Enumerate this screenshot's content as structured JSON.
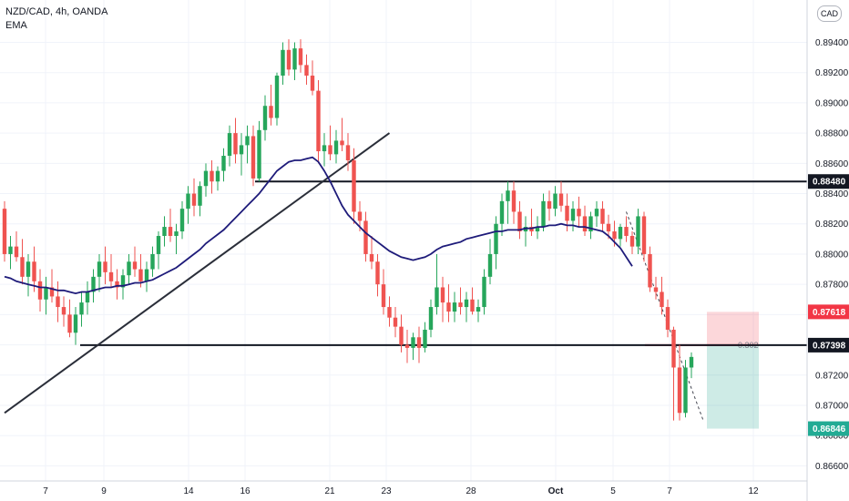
{
  "header": {
    "symbol": "NZD/CAD, 4h, OANDA",
    "indicator": "EMA",
    "currency_button": "CAD"
  },
  "chart_data": {
    "type": "candlestick",
    "ylim": [
      0.865,
      0.8968
    ],
    "y_ticks": [
      "0.86600",
      "0.86800",
      "0.87000",
      "0.87200",
      "0.87400",
      "0.87600",
      "0.87800",
      "0.88000",
      "0.88200",
      "0.88400",
      "0.88600",
      "0.88800",
      "0.89000",
      "0.89200",
      "0.89400"
    ],
    "x_labels": [
      "7",
      "9",
      "14",
      "16",
      "21",
      "23",
      "28",
      "Oct",
      "5",
      "7",
      "12"
    ],
    "price_labels": [
      {
        "value": 0.8848,
        "text": "0.88480",
        "color": "#131722"
      },
      {
        "value": 0.87618,
        "text": "0.87618",
        "color": "#f23645"
      },
      {
        "value": 0.87398,
        "text": "0.87398",
        "color": "#131722"
      },
      {
        "value": 0.86846,
        "text": "0.86846",
        "color": "#22ab94"
      }
    ],
    "horizontal_levels": [
      0.8848,
      0.87398
    ],
    "position": {
      "entry": 0.87398,
      "stop": 0.87618,
      "target": 0.86846,
      "label": "0.302"
    },
    "candles": [
      [
        0.883,
        0.8835,
        0.8795,
        0.88
      ],
      [
        0.88,
        0.8812,
        0.879,
        0.8805
      ],
      [
        0.8805,
        0.8815,
        0.8795,
        0.8798
      ],
      [
        0.8798,
        0.881,
        0.878,
        0.8785
      ],
      [
        0.8785,
        0.88,
        0.8772,
        0.8795
      ],
      [
        0.8795,
        0.8805,
        0.8775,
        0.8782
      ],
      [
        0.8782,
        0.879,
        0.8762,
        0.877
      ],
      [
        0.877,
        0.8785,
        0.876,
        0.8778
      ],
      [
        0.8778,
        0.879,
        0.8768,
        0.8772
      ],
      [
        0.8772,
        0.8782,
        0.8755,
        0.8765
      ],
      [
        0.8765,
        0.8772,
        0.8752,
        0.876
      ],
      [
        0.876,
        0.877,
        0.8745,
        0.8748
      ],
      [
        0.8748,
        0.8765,
        0.874,
        0.876
      ],
      [
        0.876,
        0.8775,
        0.8752,
        0.8768
      ],
      [
        0.8768,
        0.8782,
        0.876,
        0.8775
      ],
      [
        0.8775,
        0.879,
        0.8768,
        0.8785
      ],
      [
        0.8785,
        0.88,
        0.8775,
        0.8795
      ],
      [
        0.8795,
        0.8805,
        0.878,
        0.8788
      ],
      [
        0.8788,
        0.88,
        0.8778,
        0.8782
      ],
      [
        0.8782,
        0.879,
        0.877,
        0.8778
      ],
      [
        0.8778,
        0.879,
        0.877,
        0.8786
      ],
      [
        0.8786,
        0.88,
        0.878,
        0.8795
      ],
      [
        0.8795,
        0.8805,
        0.8785,
        0.879
      ],
      [
        0.879,
        0.88,
        0.8778,
        0.8782
      ],
      [
        0.8782,
        0.8795,
        0.8775,
        0.879
      ],
      [
        0.879,
        0.8805,
        0.8785,
        0.88
      ],
      [
        0.88,
        0.8815,
        0.879,
        0.8812
      ],
      [
        0.8812,
        0.8825,
        0.8805,
        0.8818
      ],
      [
        0.8818,
        0.883,
        0.8808,
        0.8812
      ],
      [
        0.8812,
        0.882,
        0.88,
        0.8815
      ],
      [
        0.8815,
        0.8835,
        0.881,
        0.883
      ],
      [
        0.883,
        0.8845,
        0.882,
        0.884
      ],
      [
        0.884,
        0.885,
        0.8825,
        0.8832
      ],
      [
        0.8832,
        0.8848,
        0.8825,
        0.8845
      ],
      [
        0.8845,
        0.886,
        0.8838,
        0.8855
      ],
      [
        0.8855,
        0.8862,
        0.884,
        0.8848
      ],
      [
        0.8848,
        0.8858,
        0.8842,
        0.8855
      ],
      [
        0.8855,
        0.887,
        0.8848,
        0.8865
      ],
      [
        0.8865,
        0.8885,
        0.8858,
        0.888
      ],
      [
        0.888,
        0.889,
        0.886,
        0.8866
      ],
      [
        0.8866,
        0.888,
        0.8852,
        0.8872
      ],
      [
        0.8872,
        0.8885,
        0.886,
        0.8878
      ],
      [
        0.8878,
        0.8885,
        0.8845,
        0.885
      ],
      [
        0.885,
        0.8888,
        0.8848,
        0.8882
      ],
      [
        0.8882,
        0.8905,
        0.8875,
        0.8898
      ],
      [
        0.8898,
        0.8912,
        0.8885,
        0.889
      ],
      [
        0.889,
        0.892,
        0.8885,
        0.8918
      ],
      [
        0.8918,
        0.894,
        0.8912,
        0.8935
      ],
      [
        0.8935,
        0.8942,
        0.8918,
        0.8922
      ],
      [
        0.8922,
        0.894,
        0.8915,
        0.8936
      ],
      [
        0.8936,
        0.8942,
        0.892,
        0.8925
      ],
      [
        0.8925,
        0.8932,
        0.8912,
        0.8918
      ],
      [
        0.8918,
        0.8928,
        0.8905,
        0.8908
      ],
      [
        0.8908,
        0.8915,
        0.886,
        0.8868
      ],
      [
        0.8868,
        0.888,
        0.8858,
        0.8872
      ],
      [
        0.8872,
        0.8885,
        0.8862,
        0.8866
      ],
      [
        0.8866,
        0.8882,
        0.886,
        0.8875
      ],
      [
        0.8875,
        0.889,
        0.8868,
        0.8872
      ],
      [
        0.8872,
        0.888,
        0.8855,
        0.8862
      ],
      [
        0.8862,
        0.887,
        0.882,
        0.8828
      ],
      [
        0.8828,
        0.8835,
        0.8815,
        0.8822
      ],
      [
        0.8822,
        0.8828,
        0.8795,
        0.88
      ],
      [
        0.88,
        0.8812,
        0.879,
        0.8795
      ],
      [
        0.8795,
        0.88,
        0.8772,
        0.878
      ],
      [
        0.878,
        0.879,
        0.876,
        0.8765
      ],
      [
        0.8765,
        0.8772,
        0.8752,
        0.8758
      ],
      [
        0.8758,
        0.8765,
        0.8745,
        0.8752
      ],
      [
        0.8752,
        0.876,
        0.8735,
        0.874
      ],
      [
        0.874,
        0.875,
        0.8728,
        0.8738
      ],
      [
        0.8738,
        0.8748,
        0.873,
        0.8745
      ],
      [
        0.8745,
        0.8752,
        0.8728,
        0.8738
      ],
      [
        0.8738,
        0.8755,
        0.8735,
        0.875
      ],
      [
        0.875,
        0.877,
        0.8745,
        0.8765
      ],
      [
        0.8765,
        0.88,
        0.876,
        0.8778
      ],
      [
        0.8778,
        0.8785,
        0.8755,
        0.8768
      ],
      [
        0.8768,
        0.878,
        0.8755,
        0.8762
      ],
      [
        0.8762,
        0.8775,
        0.8755,
        0.8768
      ],
      [
        0.8768,
        0.8778,
        0.876,
        0.8765
      ],
      [
        0.8765,
        0.8775,
        0.8755,
        0.877
      ],
      [
        0.877,
        0.8778,
        0.876,
        0.8762
      ],
      [
        0.8762,
        0.877,
        0.8755,
        0.8765
      ],
      [
        0.8765,
        0.879,
        0.876,
        0.8785
      ],
      [
        0.8785,
        0.881,
        0.878,
        0.88
      ],
      [
        0.88,
        0.8825,
        0.879,
        0.882
      ],
      [
        0.882,
        0.884,
        0.8812,
        0.8835
      ],
      [
        0.8835,
        0.8848,
        0.882,
        0.8842
      ],
      [
        0.8842,
        0.8848,
        0.882,
        0.8828
      ],
      [
        0.8828,
        0.8835,
        0.881,
        0.8815
      ],
      [
        0.8815,
        0.8825,
        0.8805,
        0.8818
      ],
      [
        0.8818,
        0.883,
        0.8812,
        0.8815
      ],
      [
        0.8815,
        0.8825,
        0.881,
        0.8818
      ],
      [
        0.8818,
        0.884,
        0.8815,
        0.8835
      ],
      [
        0.8835,
        0.8842,
        0.8822,
        0.883
      ],
      [
        0.883,
        0.8845,
        0.8825,
        0.884
      ],
      [
        0.884,
        0.8848,
        0.8828,
        0.8832
      ],
      [
        0.8832,
        0.884,
        0.8815,
        0.8822
      ],
      [
        0.8822,
        0.8835,
        0.8815,
        0.883
      ],
      [
        0.883,
        0.8838,
        0.8818,
        0.8825
      ],
      [
        0.8825,
        0.8832,
        0.8812,
        0.8815
      ],
      [
        0.8815,
        0.8828,
        0.881,
        0.8825
      ],
      [
        0.8825,
        0.8835,
        0.8818,
        0.883
      ],
      [
        0.883,
        0.8835,
        0.8815,
        0.882
      ],
      [
        0.882,
        0.8826,
        0.881,
        0.8815
      ],
      [
        0.8815,
        0.8822,
        0.8805,
        0.881
      ],
      [
        0.881,
        0.882,
        0.8805,
        0.8818
      ],
      [
        0.8818,
        0.8825,
        0.8808,
        0.8812
      ],
      [
        0.8812,
        0.8815,
        0.88,
        0.8805
      ],
      [
        0.8805,
        0.883,
        0.88,
        0.8825
      ],
      [
        0.8825,
        0.8828,
        0.8795,
        0.88
      ],
      [
        0.88,
        0.8805,
        0.8775,
        0.8778
      ],
      [
        0.8778,
        0.8785,
        0.877,
        0.8775
      ],
      [
        0.8775,
        0.8785,
        0.876,
        0.8765
      ],
      [
        0.8765,
        0.877,
        0.8745,
        0.875
      ],
      [
        0.875,
        0.8752,
        0.869,
        0.8725
      ],
      [
        0.8725,
        0.874,
        0.869,
        0.8695
      ],
      [
        0.8695,
        0.873,
        0.8692,
        0.8725
      ],
      [
        0.8725,
        0.8735,
        0.8718,
        0.8732
      ]
    ],
    "ema": [
      0.8785,
      0.8784,
      0.8782,
      0.8781,
      0.878,
      0.8779,
      0.8778,
      0.8778,
      0.8777,
      0.8776,
      0.8776,
      0.8775,
      0.8774,
      0.8775,
      0.8775,
      0.8776,
      0.8777,
      0.8778,
      0.8778,
      0.8779,
      0.8779,
      0.878,
      0.8781,
      0.8781,
      0.8782,
      0.8783,
      0.8785,
      0.8787,
      0.8789,
      0.8791,
      0.8794,
      0.8797,
      0.88,
      0.8803,
      0.8807,
      0.881,
      0.8813,
      0.8816,
      0.882,
      0.8824,
      0.8828,
      0.8832,
      0.8836,
      0.884,
      0.8845,
      0.885,
      0.8855,
      0.8858,
      0.8861,
      0.8862,
      0.8862,
      0.8863,
      0.8864,
      0.8861,
      0.8855,
      0.8848,
      0.884,
      0.8832,
      0.8826,
      0.8822,
      0.8818,
      0.8814,
      0.8811,
      0.8808,
      0.8805,
      0.8802,
      0.88,
      0.8798,
      0.8797,
      0.8796,
      0.8797,
      0.8798,
      0.88,
      0.8803,
      0.8805,
      0.8806,
      0.8807,
      0.8808,
      0.881,
      0.8811,
      0.8812,
      0.8813,
      0.8814,
      0.8815,
      0.8815,
      0.8816,
      0.8816,
      0.8816,
      0.8817,
      0.8817,
      0.8818,
      0.8818,
      0.8819,
      0.8819,
      0.882,
      0.8819,
      0.8819,
      0.8818,
      0.8818,
      0.8817,
      0.8816,
      0.8815,
      0.8812,
      0.8808,
      0.8804,
      0.8798,
      0.8792
    ],
    "trendline": {
      "from": {
        "x": 0,
        "y": 0.8695
      },
      "to": {
        "x": 65,
        "y": 0.888
      }
    },
    "dashed_projection": {
      "from": {
        "x": 105,
        "y": 0.8828
      },
      "to": {
        "x": 118,
        "y": 0.869
      }
    }
  }
}
